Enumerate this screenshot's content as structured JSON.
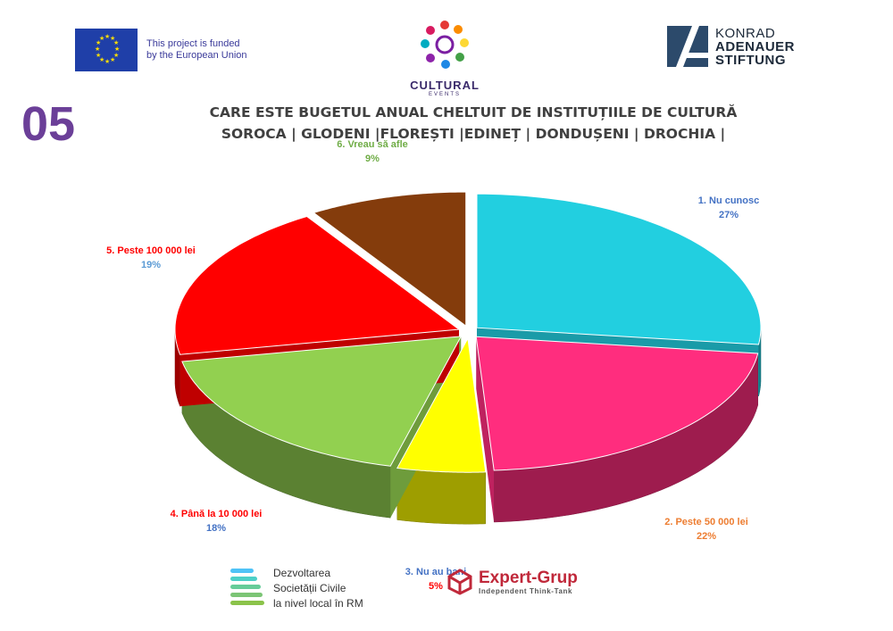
{
  "header": {
    "eu_text_line1": "This project is funded",
    "eu_text_line2": "by the European Union",
    "cultural_events_title": "CULTURAL",
    "cultural_events_sub": "EVENTS",
    "kas_line1": "KONRAD",
    "kas_line2": "ADENAUER",
    "kas_line3": "STIFTUNG"
  },
  "slide_number": "05",
  "title_line1": "CARE ESTE BUGETUL ANUAL CHELTUIT DE INSTITUȚIILE DE CULTURĂ",
  "title_line2": "SOROCA | GLODENI |FLOREȘTI |EDINEȚ | DONDUȘENI | DROCHIA |",
  "chart_data": {
    "type": "pie",
    "slices": [
      {
        "label": "1. Nu cunosc",
        "value": 27,
        "display": "27%",
        "color": "#22cfe0",
        "label_color": "#4472c4",
        "value_color": "#4472c4"
      },
      {
        "label": "2. Peste 50 000 lei",
        "value": 22,
        "display": "22%",
        "color": "#ff2d7e",
        "label_color": "#ed7d31",
        "value_color": "#ed7d31"
      },
      {
        "label": "3. Nu au bani",
        "value": 5,
        "display": "5%",
        "color": "#ffff00",
        "label_color": "#4472c4",
        "value_color": "#ff0000"
      },
      {
        "label": "4. Până la 10 000 lei",
        "value": 18,
        "display": "18%",
        "color": "#92d050",
        "label_color": "#ff0000",
        "value_color": "#4472c4"
      },
      {
        "label": "5. Peste 100 000 lei",
        "value": 19,
        "display": "19%",
        "color": "#ff0000",
        "label_color": "#ff0000",
        "value_color": "#5b9bd5"
      },
      {
        "label": "6. Vreau să afle",
        "value": 9,
        "display": "9%",
        "color": "#843c0c",
        "label_color": "#70ad47",
        "value_color": "#70ad47"
      }
    ]
  },
  "footer": {
    "dsc_line1": "Dezvoltarea",
    "dsc_line2": "Societății Civile",
    "dsc_line3": "la nivel local în RM",
    "eg_name": "Expert-Grup",
    "eg_sub": "Independent Think-Tank"
  }
}
